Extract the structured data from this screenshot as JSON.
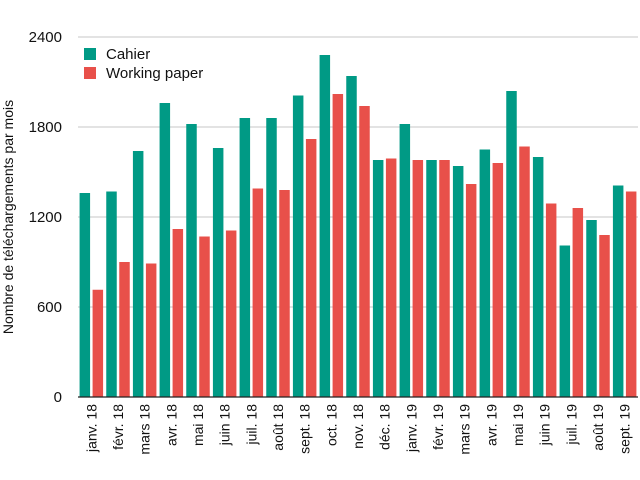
{
  "chart_data": {
    "type": "bar",
    "categories": [
      "janv. 18",
      "févr. 18",
      "mars 18",
      "avr. 18",
      "mai 18",
      "juin 18",
      "juil. 18",
      "août 18",
      "sept. 18",
      "oct. 18",
      "nov. 18",
      "déc. 18",
      "janv. 19",
      "févr. 19",
      "mars 19",
      "avr. 19",
      "mai 19",
      "juin 19",
      "juil. 19",
      "août 19",
      "sept. 19"
    ],
    "series": [
      {
        "name": "Cahier",
        "color": "#009a85",
        "values": [
          1360,
          1370,
          1640,
          1960,
          1820,
          1660,
          1860,
          1860,
          2010,
          2280,
          2140,
          1580,
          1820,
          1580,
          1540,
          1650,
          2040,
          1600,
          1010,
          1180,
          1410
        ]
      },
      {
        "name": "Working paper",
        "color": "#e8504a",
        "values": [
          715,
          900,
          890,
          1120,
          1070,
          1110,
          1390,
          1380,
          1720,
          2020,
          1940,
          1590,
          1580,
          1580,
          1420,
          1560,
          1670,
          1290,
          1260,
          1080,
          1370
        ]
      }
    ],
    "xlabel": "",
    "ylabel": "Nombre de téléchargements par mois",
    "ylim": [
      0,
      2400
    ],
    "yticks": [
      "0",
      "600",
      "1200",
      "1800",
      "2400"
    ],
    "grid": true,
    "legend_position": "top-left"
  }
}
